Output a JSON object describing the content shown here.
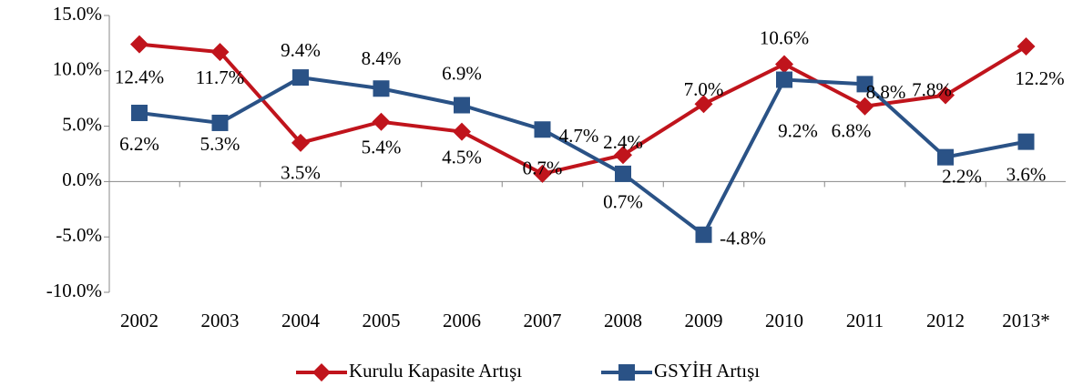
{
  "chart_data": {
    "type": "line",
    "categories": [
      "2002",
      "2003",
      "2004",
      "2005",
      "2006",
      "2007",
      "2008",
      "2009",
      "2010",
      "2011",
      "2012",
      "2013*"
    ],
    "series": [
      {
        "name": "Kurulu Kapasite Artışı",
        "color": "#c0141c",
        "values": [
          12.4,
          11.7,
          3.5,
          5.4,
          4.5,
          0.7,
          2.4,
          7.0,
          10.6,
          6.8,
          7.8,
          12.2
        ],
        "value_labels": [
          "12.4%",
          "11.7%",
          "3.5%",
          "5.4%",
          "4.5%",
          "0.7%",
          "2.4%",
          "7.0%",
          "10.6%",
          "6.8%",
          "7.8%",
          "12.2%"
        ]
      },
      {
        "name": "GSYİH Artışı",
        "color": "#2a5286",
        "values": [
          6.2,
          5.3,
          9.4,
          8.4,
          6.9,
          4.7,
          0.7,
          -4.8,
          9.2,
          8.8,
          2.2,
          3.6
        ],
        "value_labels": [
          "6.2%",
          "5.3%",
          "9.4%",
          "8.4%",
          "6.9%",
          "4.7%",
          "0.7%",
          "-4.8%",
          "9.2%",
          "8.8%",
          "2.2%",
          "3.6%"
        ]
      }
    ],
    "ylim": [
      -10,
      15
    ],
    "yticks": [
      {
        "value": -10,
        "label": "-10.0%"
      },
      {
        "value": -5,
        "label": "-5.0%"
      },
      {
        "value": 0,
        "label": "0.0%"
      },
      {
        "value": 5,
        "label": "5.0%"
      },
      {
        "value": 10,
        "label": "10.0%"
      },
      {
        "value": 15,
        "label": "15.0%"
      }
    ],
    "legend": "bottom"
  }
}
